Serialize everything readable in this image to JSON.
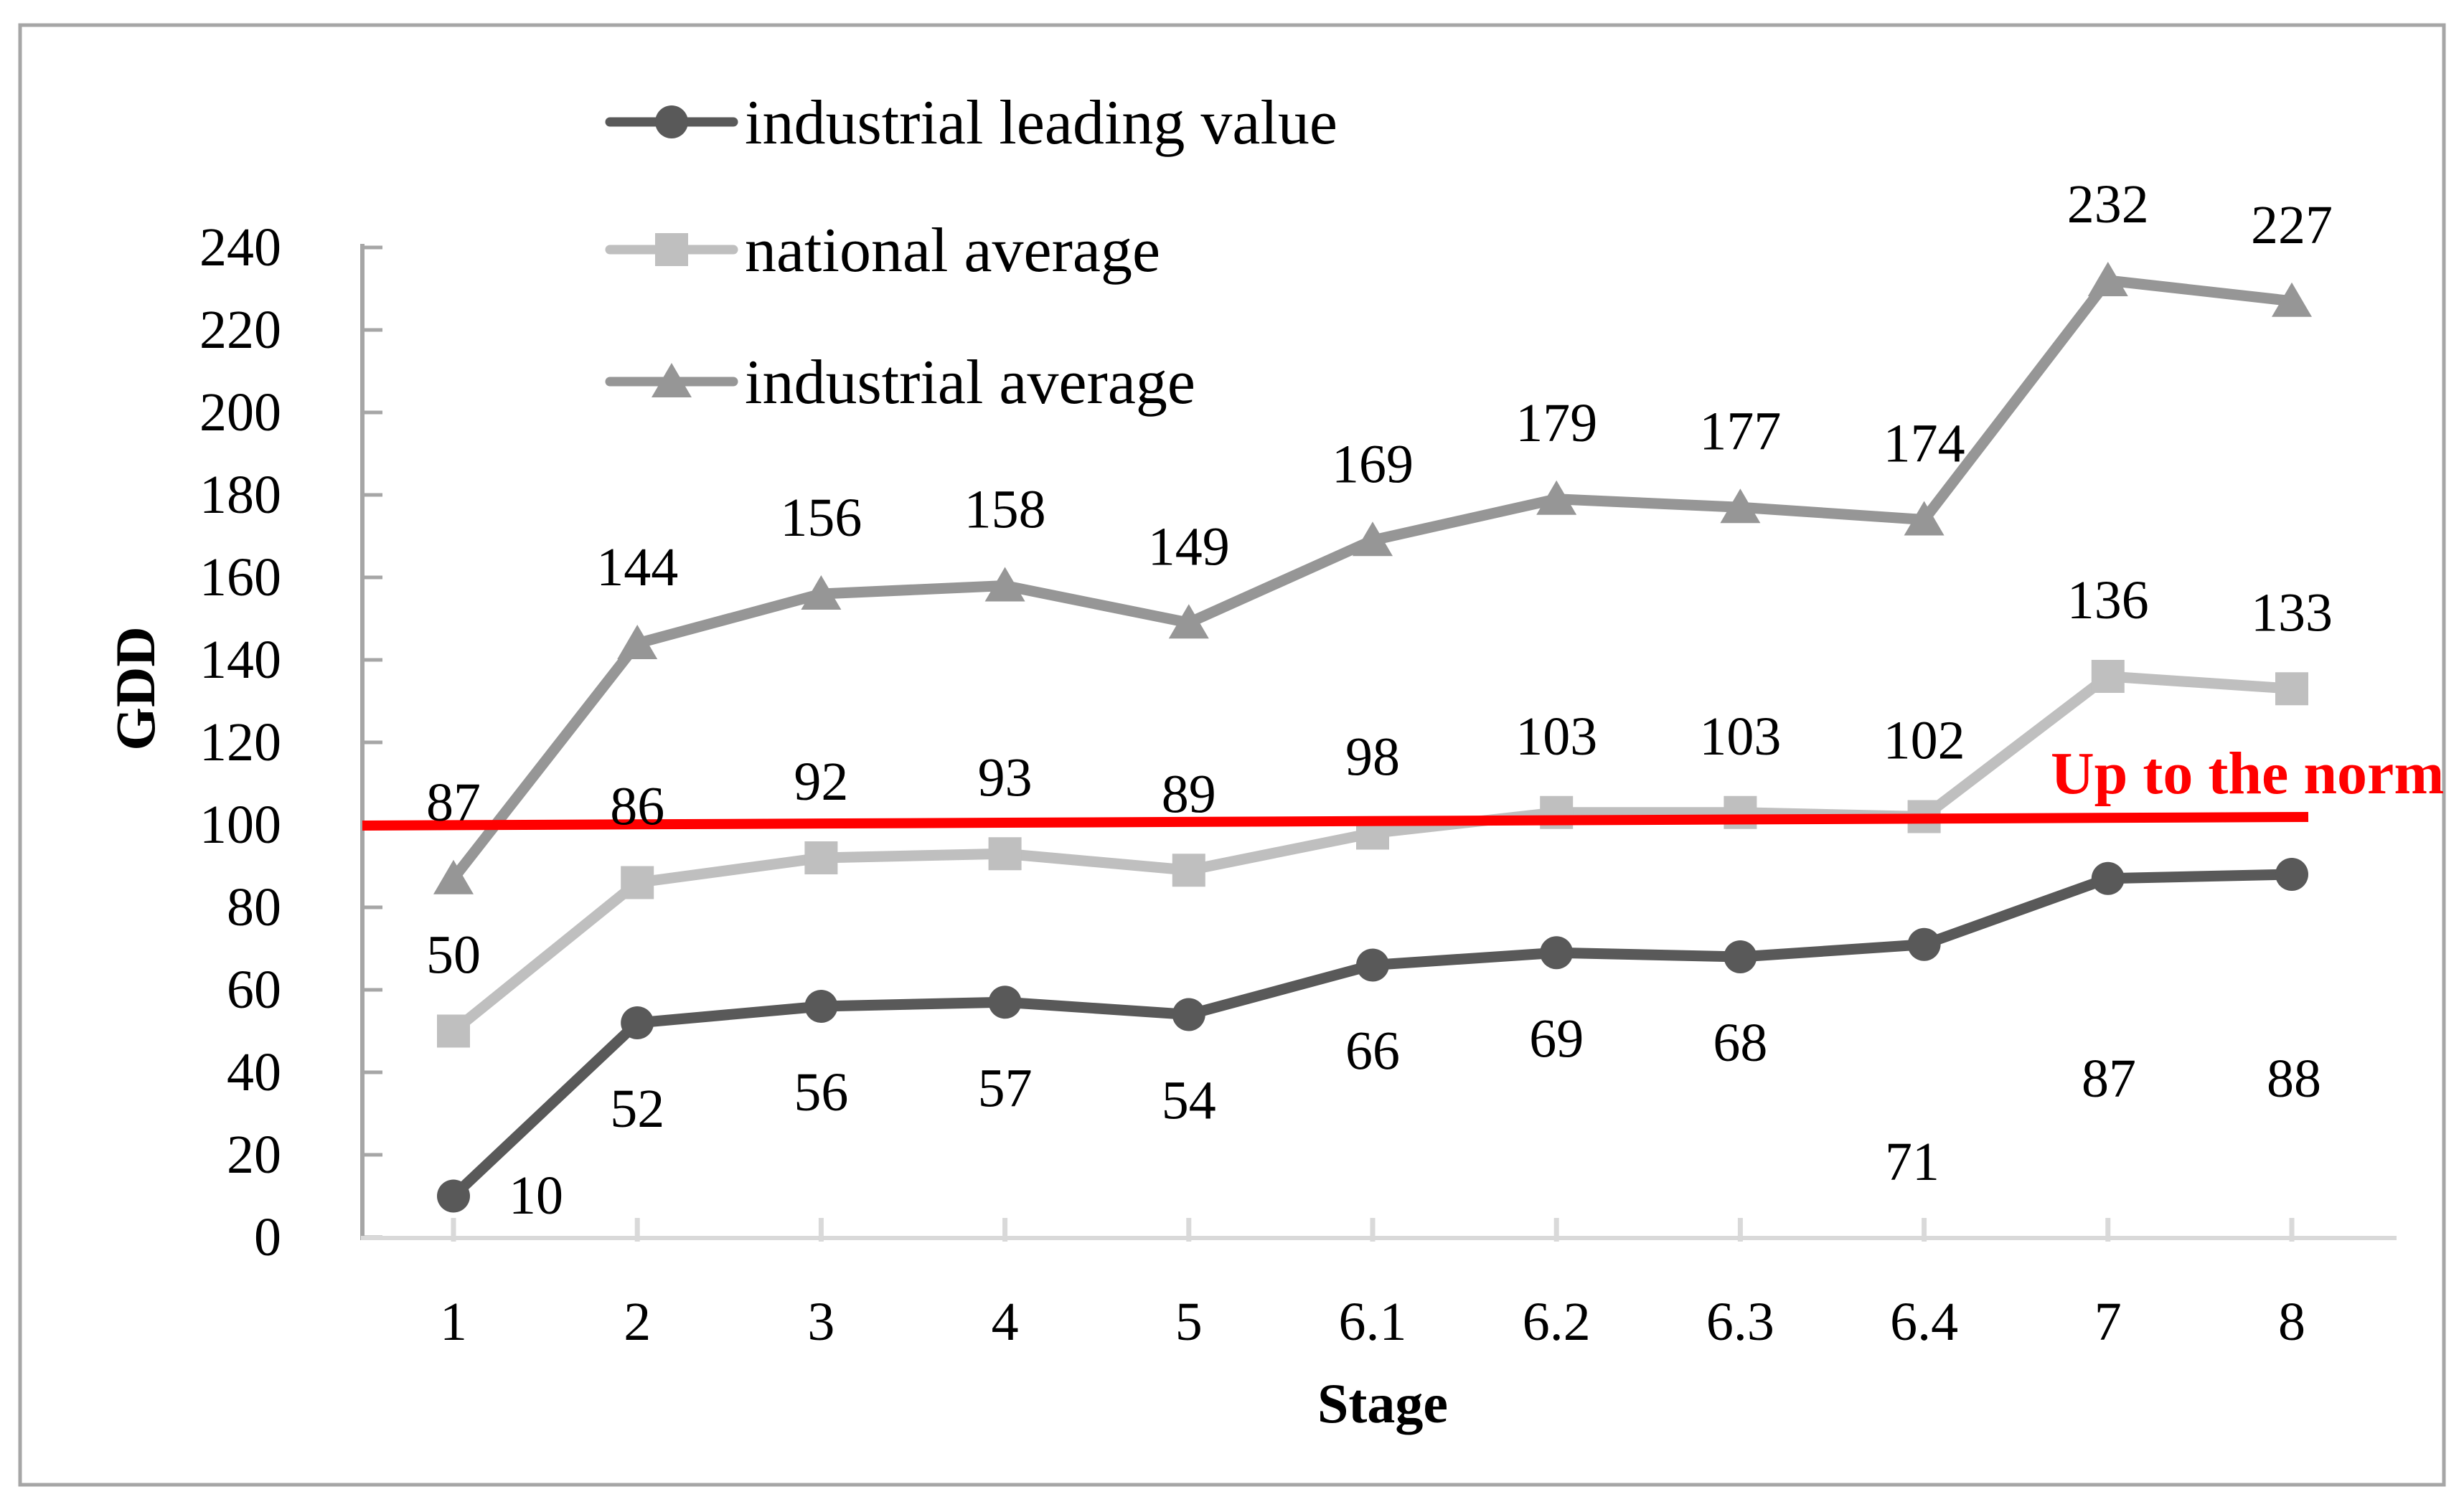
{
  "chart_data": {
    "type": "line",
    "xlabel": "Stage",
    "ylabel": "GDD",
    "categories": [
      "1",
      "2",
      "3",
      "4",
      "5",
      "6.1",
      "6.2",
      "6.3",
      "6.4",
      "7",
      "8"
    ],
    "series": [
      {
        "name": "industrial leading value",
        "marker": "circle",
        "color": "#595959",
        "values": [
          10,
          52,
          56,
          57,
          54,
          66,
          69,
          68,
          71,
          87,
          88
        ],
        "label_position": "below"
      },
      {
        "name": "national average",
        "marker": "square",
        "color": "#bfbfbf",
        "values": [
          50,
          86,
          92,
          93,
          89,
          98,
          103,
          103,
          102,
          136,
          133
        ],
        "label_position": "above"
      },
      {
        "name": "industrial average",
        "marker": "triangle",
        "color": "#969696",
        "values": [
          87,
          144,
          156,
          158,
          149,
          169,
          179,
          177,
          174,
          232,
          227
        ],
        "label_position": "above"
      }
    ],
    "y_ticks": [
      0,
      20,
      40,
      60,
      80,
      100,
      120,
      140,
      160,
      180,
      200,
      220,
      240
    ],
    "ylim": [
      0,
      240
    ],
    "reference_line": {
      "value": 100,
      "label": "Up to the norm",
      "color": "#ff0000"
    },
    "legend_position": "top-center-stacked",
    "grid": false,
    "label_overrides": [
      {
        "series": 0,
        "point": 0,
        "x": 747,
        "y": 1667
      },
      {
        "series": 0,
        "point": 8,
        "x": 2665,
        "y": 1620
      },
      {
        "series": 0,
        "point": 9,
        "x": 2939,
        "y": 1504
      },
      {
        "series": 0,
        "point": 10,
        "x": 3197,
        "y": 1504
      }
    ]
  },
  "colors": {
    "background": "#ffffff",
    "border": "#a6a6a6",
    "y_axis": "#a6a6a6",
    "x_axis": "#d9d9d9",
    "text": "#000000",
    "reference": "#ff0000"
  }
}
